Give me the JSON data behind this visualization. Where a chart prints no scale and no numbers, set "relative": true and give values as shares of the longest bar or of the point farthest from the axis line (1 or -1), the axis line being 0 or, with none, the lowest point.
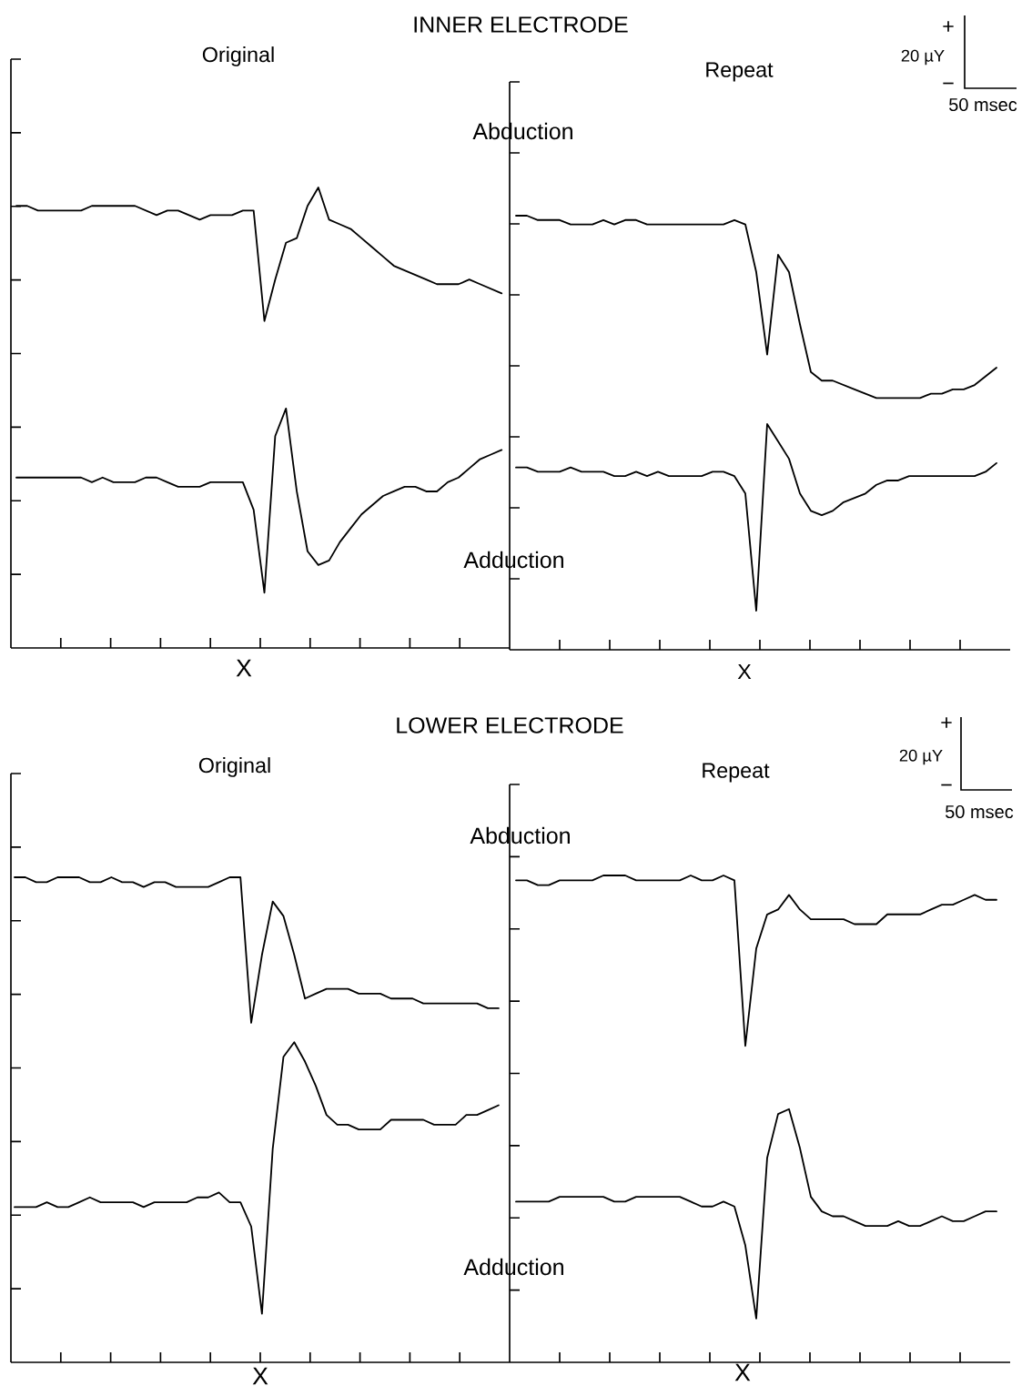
{
  "chart_data": [
    {
      "type": "line",
      "relative": true,
      "title": "Original",
      "annotations": [
        "INNER ELECTRODE",
        "X"
      ],
      "categories": [
        null,
        null,
        null,
        null,
        null,
        null,
        null,
        null,
        null,
        null,
        null,
        null,
        null,
        null,
        null,
        null,
        null,
        null,
        null,
        null,
        null,
        null,
        null,
        null,
        null,
        null,
        null,
        null,
        null,
        null,
        null,
        null,
        null,
        null,
        null,
        null,
        null,
        null,
        null,
        null,
        null,
        null,
        null,
        null,
        null,
        null
      ],
      "series": [
        {
          "color": "#000000",
          "values": [
            0.96,
            0.96,
            0.95,
            0.95,
            0.95,
            0.95,
            0.95,
            0.96,
            0.96,
            0.96,
            0.96,
            0.96,
            0.95,
            0.94,
            0.95,
            0.95,
            0.94,
            0.93,
            0.94,
            0.94,
            0.94,
            0.95,
            0.95,
            0.71,
            0.8,
            0.88,
            0.89,
            0.96,
            1.0,
            0.93,
            0.92,
            0.91,
            0.89,
            0.87,
            0.85,
            0.83,
            0.82,
            0.81,
            0.8,
            0.79,
            0.79,
            0.79,
            0.8,
            0.79,
            0.78,
            0.77
          ]
        },
        {
          "color": "#000000",
          "values": [
            0.37,
            0.37,
            0.37,
            0.37,
            0.37,
            0.37,
            0.37,
            0.36,
            0.37,
            0.36,
            0.36,
            0.36,
            0.37,
            0.37,
            0.36,
            0.35,
            0.35,
            0.35,
            0.36,
            0.36,
            0.36,
            0.36,
            0.3,
            0.12,
            0.46,
            0.52,
            0.34,
            0.21,
            0.18,
            0.19,
            0.23,
            0.26,
            0.29,
            0.31,
            0.33,
            0.34,
            0.35,
            0.35,
            0.34,
            0.34,
            0.36,
            0.37,
            0.39,
            0.41,
            0.42,
            0.43
          ]
        }
      ]
    },
    {
      "type": "line",
      "relative": true,
      "title": "Repeat",
      "annotations": [
        "Abduction",
        "Adduction",
        "X",
        "+",
        "20 µY",
        "−",
        "50 msec"
      ],
      "categories": [
        null,
        null,
        null,
        null,
        null,
        null,
        null,
        null,
        null,
        null,
        null,
        null,
        null,
        null,
        null,
        null,
        null,
        null,
        null,
        null,
        null,
        null,
        null,
        null,
        null,
        null,
        null,
        null,
        null,
        null,
        null,
        null,
        null,
        null,
        null,
        null,
        null,
        null,
        null,
        null,
        null,
        null,
        null,
        null,
        null
      ],
      "series": [
        {
          "color": "#000000",
          "values": [
            1.0,
            1.0,
            0.99,
            0.99,
            0.99,
            0.98,
            0.98,
            0.98,
            0.99,
            0.98,
            0.99,
            0.99,
            0.98,
            0.98,
            0.98,
            0.98,
            0.98,
            0.98,
            0.98,
            0.98,
            0.99,
            0.98,
            0.87,
            0.68,
            0.91,
            0.87,
            0.75,
            0.64,
            0.62,
            0.62,
            0.61,
            0.6,
            0.59,
            0.58,
            0.58,
            0.58,
            0.58,
            0.58,
            0.59,
            0.59,
            0.6,
            0.6,
            0.61,
            0.63,
            0.65
          ]
        },
        {
          "color": "#000000",
          "values": [
            0.42,
            0.42,
            0.41,
            0.41,
            0.41,
            0.42,
            0.41,
            0.41,
            0.41,
            0.4,
            0.4,
            0.41,
            0.4,
            0.41,
            0.4,
            0.4,
            0.4,
            0.4,
            0.41,
            0.41,
            0.4,
            0.36,
            0.09,
            0.52,
            0.48,
            0.44,
            0.36,
            0.32,
            0.31,
            0.32,
            0.34,
            0.35,
            0.36,
            0.38,
            0.39,
            0.39,
            0.4,
            0.4,
            0.4,
            0.4,
            0.4,
            0.4,
            0.4,
            0.41,
            0.43
          ]
        }
      ]
    },
    {
      "type": "line",
      "relative": true,
      "title": "Original",
      "annotations": [
        "LOWER ELECTRODE",
        "X"
      ],
      "categories": [
        null,
        null,
        null,
        null,
        null,
        null,
        null,
        null,
        null,
        null,
        null,
        null,
        null,
        null,
        null,
        null,
        null,
        null,
        null,
        null,
        null,
        null,
        null,
        null,
        null,
        null,
        null,
        null,
        null,
        null,
        null,
        null,
        null,
        null,
        null,
        null,
        null,
        null,
        null,
        null,
        null,
        null,
        null,
        null,
        null,
        null
      ],
      "series": [
        {
          "color": "#000000",
          "values": [
            1.0,
            1.0,
            0.99,
            0.99,
            1.0,
            1.0,
            1.0,
            0.99,
            0.99,
            1.0,
            0.99,
            0.99,
            0.98,
            0.99,
            0.99,
            0.98,
            0.98,
            0.98,
            0.98,
            0.99,
            1.0,
            1.0,
            0.7,
            0.84,
            0.95,
            0.92,
            0.84,
            0.75,
            0.76,
            0.77,
            0.77,
            0.77,
            0.76,
            0.76,
            0.76,
            0.75,
            0.75,
            0.75,
            0.74,
            0.74,
            0.74,
            0.74,
            0.74,
            0.74,
            0.73,
            0.73
          ]
        },
        {
          "color": "#000000",
          "values": [
            0.32,
            0.32,
            0.32,
            0.33,
            0.32,
            0.32,
            0.33,
            0.34,
            0.33,
            0.33,
            0.33,
            0.33,
            0.32,
            0.33,
            0.33,
            0.33,
            0.33,
            0.34,
            0.34,
            0.35,
            0.33,
            0.33,
            0.28,
            0.1,
            0.44,
            0.63,
            0.66,
            0.62,
            0.57,
            0.51,
            0.49,
            0.49,
            0.48,
            0.48,
            0.48,
            0.5,
            0.5,
            0.5,
            0.5,
            0.49,
            0.49,
            0.49,
            0.51,
            0.51,
            0.52,
            0.53
          ]
        }
      ]
    },
    {
      "type": "line",
      "relative": true,
      "title": "Repeat",
      "annotations": [
        "Abduction",
        "Adduction",
        "X",
        "+",
        "20 µY",
        "−",
        "50 msec"
      ],
      "categories": [
        null,
        null,
        null,
        null,
        null,
        null,
        null,
        null,
        null,
        null,
        null,
        null,
        null,
        null,
        null,
        null,
        null,
        null,
        null,
        null,
        null,
        null,
        null,
        null,
        null,
        null,
        null,
        null,
        null,
        null,
        null,
        null,
        null,
        null,
        null,
        null,
        null,
        null,
        null,
        null,
        null,
        null,
        null,
        null,
        null
      ],
      "series": [
        {
          "color": "#000000",
          "values": [
            0.99,
            0.99,
            0.98,
            0.98,
            0.99,
            0.99,
            0.99,
            0.99,
            1.0,
            1.0,
            1.0,
            0.99,
            0.99,
            0.99,
            0.99,
            0.99,
            1.0,
            0.99,
            0.99,
            1.0,
            0.99,
            0.65,
            0.85,
            0.92,
            0.93,
            0.96,
            0.93,
            0.91,
            0.91,
            0.91,
            0.91,
            0.9,
            0.9,
            0.9,
            0.92,
            0.92,
            0.92,
            0.92,
            0.93,
            0.94,
            0.94,
            0.95,
            0.96,
            0.95,
            0.95
          ]
        },
        {
          "color": "#000000",
          "values": [
            0.33,
            0.33,
            0.33,
            0.33,
            0.34,
            0.34,
            0.34,
            0.34,
            0.34,
            0.33,
            0.33,
            0.34,
            0.34,
            0.34,
            0.34,
            0.34,
            0.33,
            0.32,
            0.32,
            0.33,
            0.32,
            0.24,
            0.09,
            0.42,
            0.51,
            0.52,
            0.44,
            0.34,
            0.31,
            0.3,
            0.3,
            0.29,
            0.28,
            0.28,
            0.28,
            0.29,
            0.28,
            0.28,
            0.29,
            0.3,
            0.29,
            0.29,
            0.3,
            0.31,
            0.31
          ]
        }
      ]
    }
  ]
}
